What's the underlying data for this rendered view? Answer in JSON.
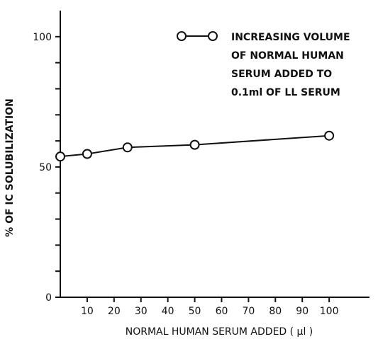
{
  "chart_data": {
    "type": "line",
    "xlabel": "NORMAL HUMAN SERUM ADDED ( µl )",
    "ylabel": "% OF IC SOLUBILIZATION",
    "x_ticks": [
      {
        "value": 10,
        "label": "10"
      },
      {
        "value": 20,
        "label": "20"
      },
      {
        "value": 30,
        "label": "30"
      },
      {
        "value": 40,
        "label": "40"
      },
      {
        "value": 50,
        "label": "50"
      },
      {
        "value": 60,
        "label": "60"
      },
      {
        "value": 70,
        "label": "70"
      },
      {
        "value": 80,
        "label": "80"
      },
      {
        "value": 90,
        "label": "90"
      },
      {
        "value": 100,
        "label": "100"
      }
    ],
    "y_ticks": [
      {
        "value": 0,
        "label": "0"
      },
      {
        "value": 50,
        "label": "50"
      },
      {
        "value": 100,
        "label": "100"
      }
    ],
    "y_minor_ticks": [
      10,
      20,
      30,
      40,
      60,
      70,
      80,
      90
    ],
    "xlim": [
      0,
      115
    ],
    "ylim": [
      0,
      110
    ],
    "grid": false,
    "legend_position": "top-right",
    "series": [
      {
        "name": "INCREASING VOLUME OF NORMAL HUMAN SERUM ADDED TO 0.1ml OF LL SERUM",
        "legend_lines": [
          "INCREASING VOLUME",
          "OF NORMAL HUMAN",
          "SERUM ADDED TO",
          "0.1ml OF LL SERUM"
        ],
        "marker": "open-circle",
        "x": [
          0,
          10,
          25,
          50,
          100
        ],
        "y": [
          54,
          55,
          57.5,
          58.5,
          62
        ]
      }
    ]
  }
}
